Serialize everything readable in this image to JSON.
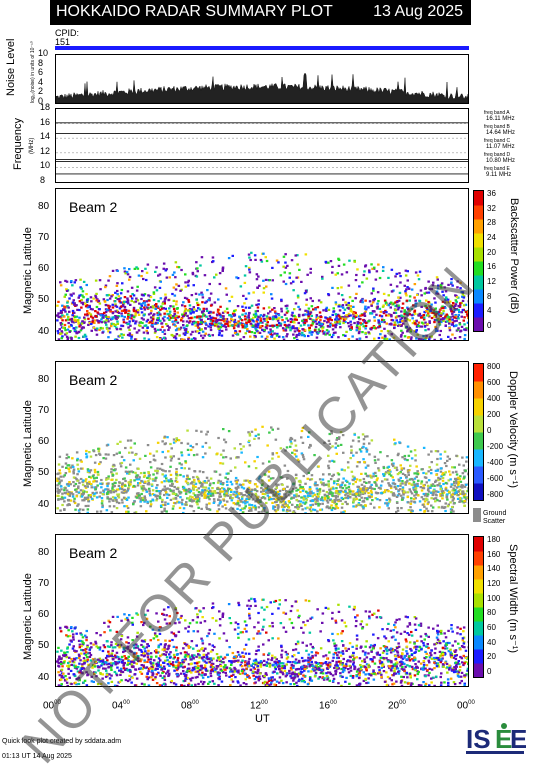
{
  "header": {
    "title": "HOKKAIDO RADAR SUMMARY PLOT",
    "date": "13 Aug 2025",
    "cpid_label": "CPID:",
    "cpid_value": "151"
  },
  "noise_panel": {
    "ylabel": "Noise Level",
    "ylabel_sub": "log₁₀(noise) in units of 10⁻¹⁰",
    "yticks": [
      "0",
      "2",
      "4",
      "6",
      "8",
      "10"
    ]
  },
  "freq_panel": {
    "ylabel": "Frequency",
    "ylabel_sub": "(MHz)",
    "yticks": [
      "8",
      "10",
      "12",
      "14",
      "16",
      "18"
    ],
    "bands": [
      {
        "name": "freq band A",
        "value": "16.11 MHz"
      },
      {
        "name": "freq band B",
        "value": "14.64 MHz"
      },
      {
        "name": "freq band C",
        "value": "11.07 MHz"
      },
      {
        "name": "freq band D",
        "value": "10.80 MHz"
      },
      {
        "name": "freq band E",
        "value": "9.11 MHz"
      }
    ]
  },
  "panels": [
    {
      "beam": "Beam  2",
      "ylabel": "Magnetic Latitude",
      "cbar_label": "Backscatter Power (dB)",
      "cbar_ticks": [
        "36",
        "32",
        "28",
        "24",
        "20",
        "16",
        "12",
        "8",
        "4",
        "0"
      ]
    },
    {
      "beam": "Beam  2",
      "ylabel": "Magnetic Latitude",
      "cbar_label": "Doppler Velocity (m s⁻¹)",
      "cbar_ticks": [
        "800",
        "600",
        "400",
        "200",
        "0",
        "-200",
        "-400",
        "-600",
        "-800"
      ],
      "ground_label": "Ground",
      "ground_label2": "Scatter"
    },
    {
      "beam": "Beam  2",
      "ylabel": "Magnetic Latitude",
      "cbar_label": "Spectral Width (m s⁻¹)",
      "cbar_ticks": [
        "180",
        "160",
        "140",
        "120",
        "100",
        "80",
        "60",
        "40",
        "20",
        "0"
      ]
    }
  ],
  "lat_ticks": [
    "40",
    "50",
    "60",
    "70",
    "80"
  ],
  "time_ticks": [
    "00",
    "04",
    "08",
    "12",
    "16",
    "20",
    "00"
  ],
  "time_sup": "00",
  "xlabel": "UT",
  "footer": {
    "line1": "Quick look plot created by sddata.adm",
    "line2": "01:13 UT 14 Aug 2025",
    "logo": "ISEE"
  },
  "watermark": "NOT FOR PUBLICATION",
  "chart_data": {
    "type": "heatmap",
    "x_range_hours": [
      0,
      24
    ],
    "y_range_mlat": [
      37,
      86
    ],
    "noise_range": [
      0,
      10
    ],
    "freq_range": [
      8,
      18
    ],
    "freq_lines_mhz": [
      16.11,
      14.64,
      11.07,
      10.8,
      9.11
    ],
    "power_range_db": [
      0,
      38
    ],
    "velocity_range": [
      -900,
      900
    ],
    "width_range": [
      0,
      190
    ],
    "colors": {
      "cpid_bar": "#1a1aff",
      "power_scale": [
        "#6a0dad",
        "#1c1cff",
        "#0a88ff",
        "#00c8a0",
        "#22dd22",
        "#a8e000",
        "#f0e000",
        "#ffa000",
        "#ff4000",
        "#e00000"
      ],
      "velocity_scale": [
        "#1010c0",
        "#2a5aff",
        "#19b7ff",
        "#3ec94e",
        "#b9e03a",
        "#f6d200",
        "#ff8f00",
        "#ff2000"
      ],
      "width_scale": [
        "#6a0dad",
        "#1c1cff",
        "#0a88ff",
        "#00c8a0",
        "#22dd22",
        "#a8e000",
        "#f0e000",
        "#ffa000",
        "#ff4000",
        "#e00000"
      ],
      "ground_scatter": "#8c8c8c"
    }
  }
}
